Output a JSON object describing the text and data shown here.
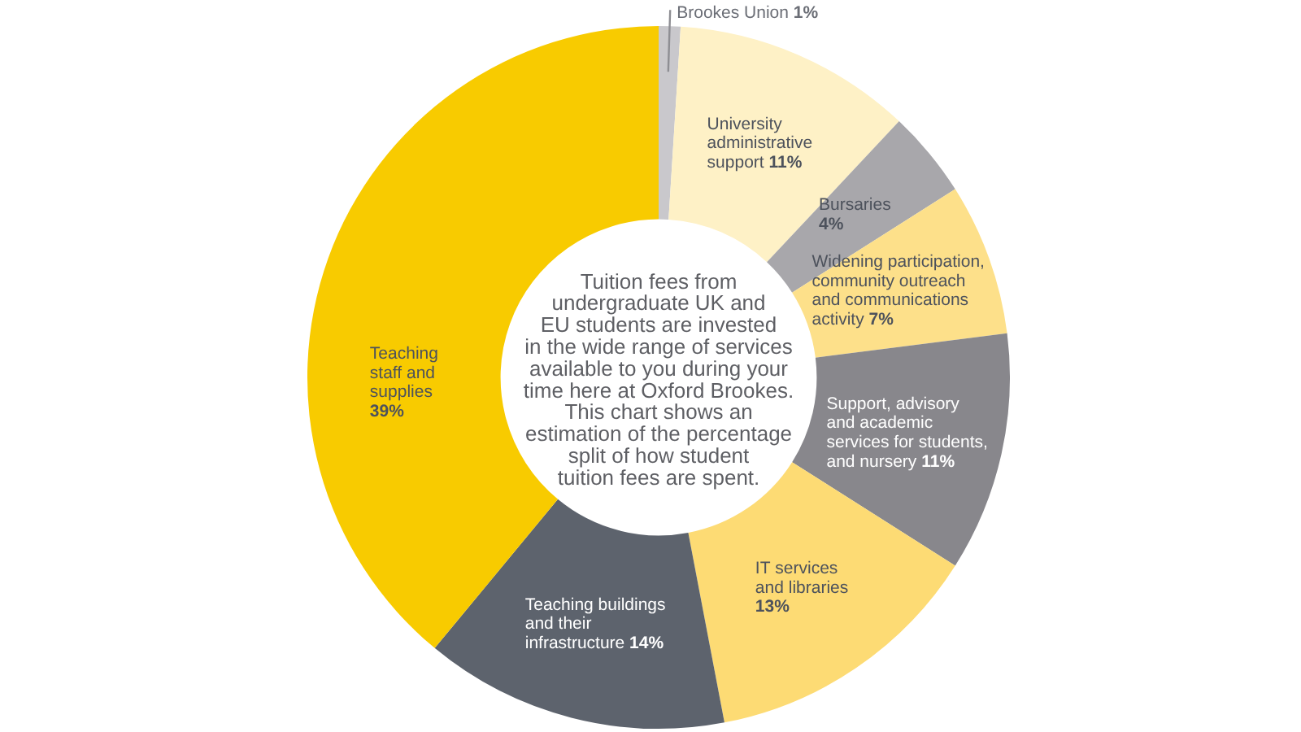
{
  "chart_data": {
    "type": "donut",
    "categories": [
      "Brookes Union",
      "University administrative support",
      "Bursaries",
      "Widening participation, community outreach and communications activity",
      "Support, advisory and academic services for students, and nursery",
      "IT services and libraries",
      "Teaching buildings and their infrastructure",
      "Teaching staff and supplies"
    ],
    "values": [
      1,
      11,
      4,
      7,
      11,
      13,
      14,
      39
    ],
    "value_labels": [
      "1%",
      "11%",
      "4%",
      "7%",
      "11%",
      "13%",
      "14%",
      "39%"
    ],
    "colors": [
      "#c9c8cc",
      "#fef1c6",
      "#a8a7ab",
      "#fde08a",
      "#88878c",
      "#fddb74",
      "#5d636d",
      "#f8cb00"
    ],
    "annotations": [
      "Tuition fees from undergraduate UK and EU students are invested in the wide range of services available to you during your time here at Oxford Brookes. This chart shows an estimation of the percentage split of how student tuition fees are spent."
    ],
    "legend": false
  }
}
